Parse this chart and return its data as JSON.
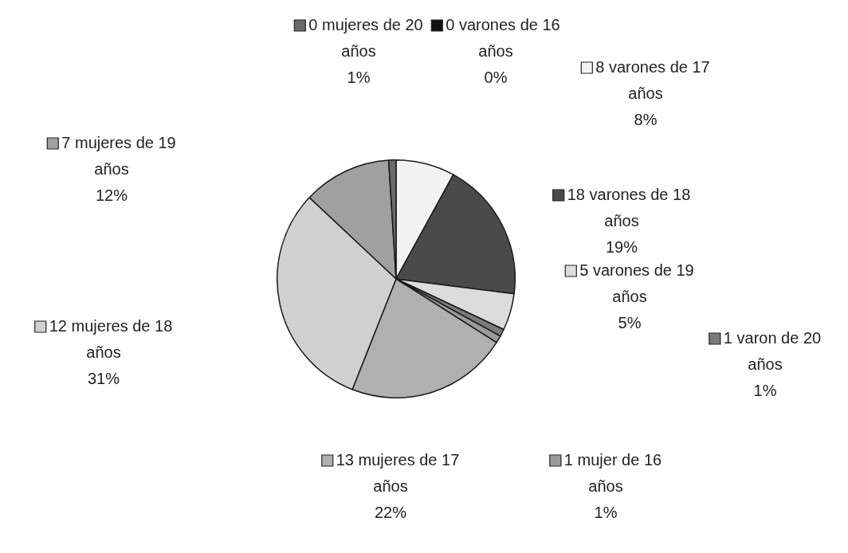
{
  "chart_data": {
    "type": "pie",
    "categories": [
      "0 varones de 16 años",
      "8 varones de 17 años",
      "18 varones de 18 años",
      "5 varones de 19 años",
      "1 varon de 20 años",
      "1 mujer de 16 años",
      "13 mujeres de 17 años",
      "12 mujeres de 18 años",
      "7 mujeres de 19 años",
      "0 mujeres de 20 años"
    ],
    "values": [
      0,
      8,
      19,
      5,
      1,
      1,
      22,
      31,
      12,
      1
    ],
    "value_labels": [
      "0%",
      "8%",
      "19%",
      "5%",
      "1%",
      "1%",
      "22%",
      "31%",
      "12%",
      "1%"
    ],
    "colors": [
      "#111111",
      "#f2f2f2",
      "#4a4a4a",
      "#dcdcdc",
      "#7a7a7a",
      "#9a9a9a",
      "#b0b0b0",
      "#d0d0d0",
      "#a0a0a0",
      "#6a6a6a"
    ],
    "legend": "right"
  }
}
